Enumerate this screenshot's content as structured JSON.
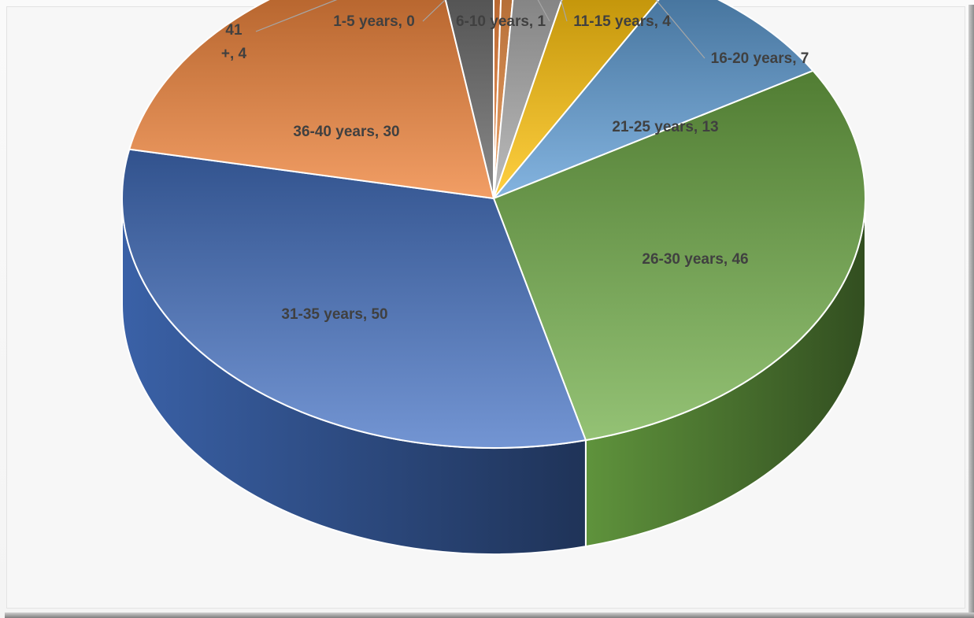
{
  "chart_data": {
    "type": "pie",
    "title": "",
    "three_d": true,
    "legend": "none",
    "data_labels": "category, value",
    "slices": [
      {
        "label": "1-5 years",
        "value": 0,
        "display": "1-5 years, 0",
        "color": "#ed7d31"
      },
      {
        "label": "6-10 years",
        "value": 1,
        "display": "6-10 years, 1",
        "color": "#e8873a"
      },
      {
        "label": "11-15 years",
        "value": 4,
        "display": "11-15 years, 4",
        "color": "#a5a5a5"
      },
      {
        "label": "16-20 years",
        "value": 7,
        "display": "16-20 years, 7",
        "color": "#ffc000"
      },
      {
        "label": "21-25 years",
        "value": 13,
        "display": "21-25 years, 13",
        "color": "#5b9bd5"
      },
      {
        "label": "26-30 years",
        "value": 46,
        "display": "26-30 years, 46",
        "color": "#70ad47"
      },
      {
        "label": "31-35 years",
        "value": 50,
        "display": "31-35 years, 50",
        "color": "#4472c4"
      },
      {
        "label": "36-40 years",
        "value": 30,
        "display": "36-40 years, 30",
        "color": "#ed7d31"
      },
      {
        "label": "41+",
        "value": 4,
        "display": "41 +, 4",
        "color": "#636363"
      }
    ]
  }
}
